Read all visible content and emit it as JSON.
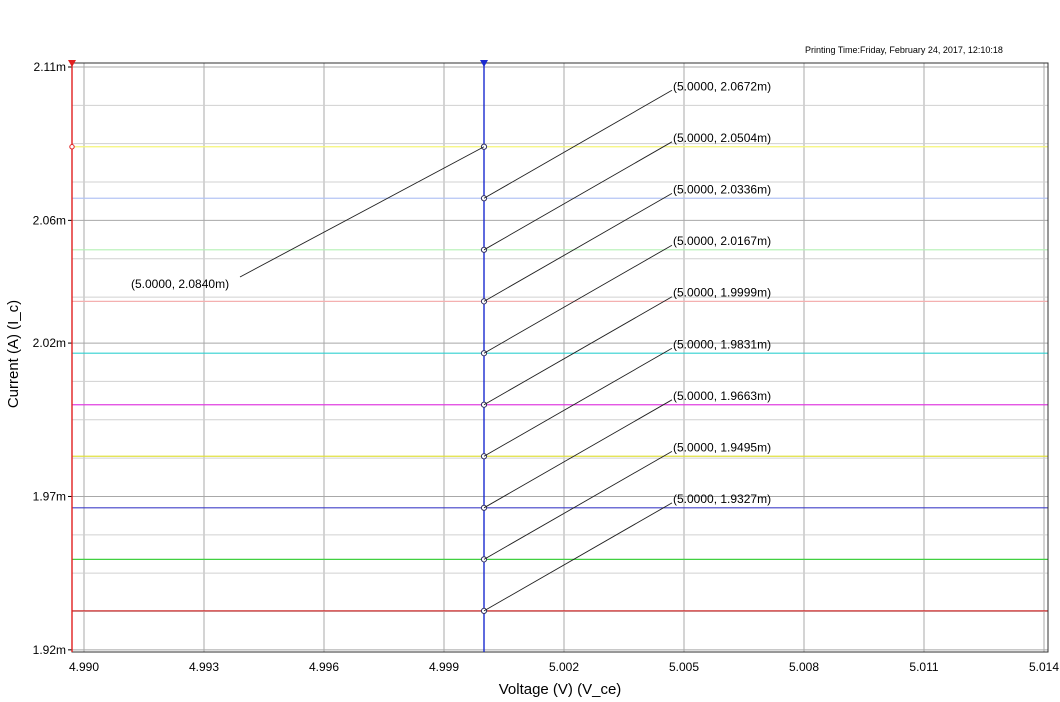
{
  "print_time": "Printing Time:Friday, February 24, 2017, 12:10:18",
  "chart_data": {
    "type": "line",
    "xlabel": "Voltage (V) (V_ce)",
    "ylabel": "Current (A) (I_c)",
    "xlim": [
      4.9897,
      5.0141
    ],
    "ylim": [
      1.9193,
      2.1113
    ],
    "x_ticks": [
      4.99,
      4.993,
      4.996,
      4.999,
      5.002,
      5.005,
      5.008,
      5.011,
      5.014
    ],
    "x_tick_labels": [
      "4.990",
      "4.993",
      "4.996",
      "4.999",
      "5.002",
      "5.005",
      "5.008",
      "5.011",
      "5.014"
    ],
    "y_ticks": [
      2.11,
      2.06,
      2.02,
      1.97,
      1.92
    ],
    "y_tick_labels": [
      "2.11m",
      "2.06m",
      "2.02m",
      "1.97m",
      "1.92m"
    ],
    "y_minor_grid": [
      2.0975,
      2.085,
      2.0725,
      2.0475,
      2.035,
      2.0075,
      1.995,
      1.9825,
      1.9575,
      1.945,
      1.9325
    ],
    "grid": true,
    "cursor_x": 5.0,
    "series": [
      {
        "values": [
          2.084,
          2.084
        ],
        "color": "#f4f47a"
      },
      {
        "values": [
          2.0672,
          2.0672
        ],
        "color": "#b4c4f4"
      },
      {
        "values": [
          2.0504,
          2.0504
        ],
        "color": "#b4f0b4"
      },
      {
        "values": [
          2.0336,
          2.0336
        ],
        "color": "#f4b0b0"
      },
      {
        "values": [
          2.0167,
          2.0167
        ],
        "color": "#30d0d0"
      },
      {
        "values": [
          1.9999,
          1.9999
        ],
        "color": "#e040e0"
      },
      {
        "values": [
          1.9831,
          1.9831
        ],
        "color": "#e0e040"
      },
      {
        "values": [
          1.9663,
          1.9663
        ],
        "color": "#4040c8"
      },
      {
        "values": [
          1.9495,
          1.9495
        ],
        "color": "#40d040"
      },
      {
        "values": [
          1.9327,
          1.9327
        ],
        "color": "#d03030"
      }
    ],
    "annotations": [
      {
        "text": "(5.0000, 2.0840m)",
        "y": 2.084,
        "side": "left"
      },
      {
        "text": "(5.0000, 2.0672m)",
        "y": 2.0672,
        "side": "right"
      },
      {
        "text": "(5.0000, 2.0504m)",
        "y": 2.0504,
        "side": "right"
      },
      {
        "text": "(5.0000, 2.0336m)",
        "y": 2.0336,
        "side": "right"
      },
      {
        "text": "(5.0000, 2.0167m)",
        "y": 2.0167,
        "side": "right"
      },
      {
        "text": "(5.0000, 1.9999m)",
        "y": 1.9999,
        "side": "right"
      },
      {
        "text": "(5.0000, 1.9831m)",
        "y": 1.9831,
        "side": "right"
      },
      {
        "text": "(5.0000, 1.9663m)",
        "y": 1.9663,
        "side": "right"
      },
      {
        "text": "(5.0000, 1.9495m)",
        "y": 1.9495,
        "side": "right"
      },
      {
        "text": "(5.0000, 1.9327m)",
        "y": 1.9327,
        "side": "right"
      }
    ],
    "colors": {
      "grid": "#a8a8a8",
      "cursor": "#1a2ad0",
      "left_axis": "#e02020"
    }
  }
}
